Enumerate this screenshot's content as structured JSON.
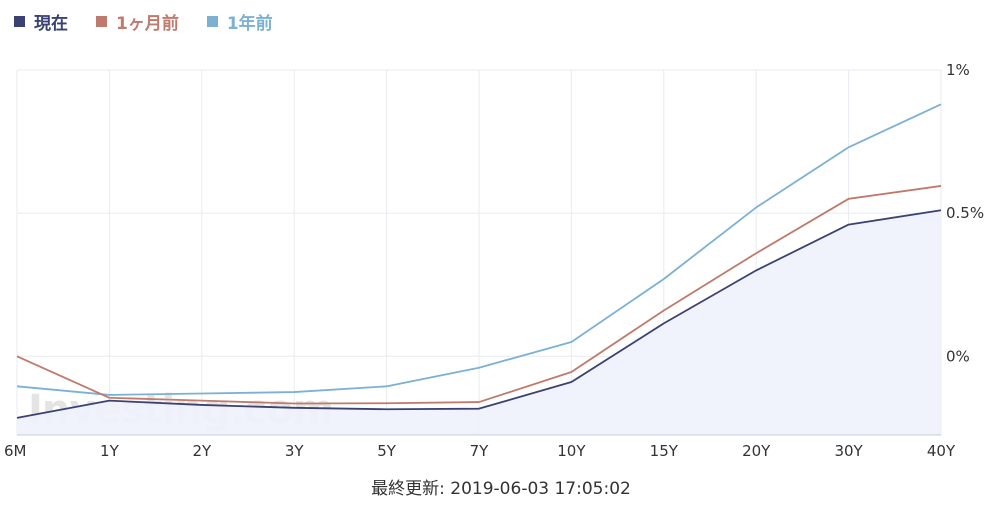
{
  "chart_data": {
    "type": "line",
    "categories": [
      "6M",
      "1Y",
      "2Y",
      "3Y",
      "5Y",
      "7Y",
      "10Y",
      "15Y",
      "20Y",
      "30Y",
      "40Y"
    ],
    "series": [
      {
        "name": "現在",
        "color": "#3b4273",
        "fill": "#eef2fc",
        "values": [
          -0.215,
          -0.155,
          -0.17,
          -0.18,
          -0.185,
          -0.183,
          -0.09,
          0.115,
          0.3,
          0.46,
          0.51
        ]
      },
      {
        "name": "1ヶ月前",
        "color": "#c07a6c",
        "values": [
          0.0,
          -0.145,
          -0.155,
          -0.165,
          -0.164,
          -0.16,
          -0.055,
          0.16,
          0.36,
          0.55,
          0.595
        ]
      },
      {
        "name": "1年前",
        "color": "#7cb1d3",
        "values": [
          -0.105,
          -0.135,
          -0.13,
          -0.125,
          -0.105,
          -0.04,
          0.05,
          0.27,
          0.52,
          0.73,
          0.88
        ]
      }
    ],
    "y_ticks": [
      0,
      0.5,
      1.0
    ],
    "y_tick_labels": [
      "0%",
      "0.5%",
      "1%"
    ],
    "ylim": [
      -0.275,
      1.0
    ],
    "y_axis_position": "right",
    "grid": true,
    "legend_position": "top-left",
    "watermark": "Investing.com"
  },
  "footer": {
    "last_updated": "最終更新: 2019-06-03 17:05:02"
  }
}
